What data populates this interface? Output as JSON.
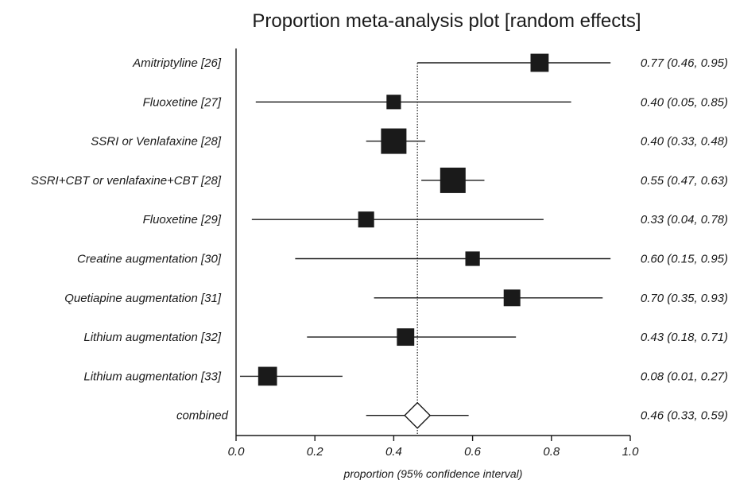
{
  "chart_data": {
    "type": "forest",
    "title": "Proportion meta-analysis plot [random effects]",
    "xlabel": "proportion (95% confidence interval)",
    "xlim": [
      0.0,
      1.0
    ],
    "x_ticks": [
      "0.0",
      "0.2",
      "0.4",
      "0.6",
      "0.8",
      "1.0"
    ],
    "x_tick_values": [
      0.0,
      0.2,
      0.4,
      0.6,
      0.8,
      1.0
    ],
    "studies": [
      {
        "label": "Amitriptyline [26]",
        "estimate": 0.77,
        "lower": 0.46,
        "upper": 0.95,
        "ci_text": "0.77 (0.46, 0.95)",
        "weight": 3
      },
      {
        "label": "Fluoxetine [27]",
        "estimate": 0.4,
        "lower": 0.05,
        "upper": 0.85,
        "ci_text": "0.40 (0.05, 0.85)",
        "weight": 2
      },
      {
        "label": "SSRI or Venlafaxine [28]",
        "estimate": 0.4,
        "lower": 0.33,
        "upper": 0.48,
        "ci_text": "0.40 (0.33, 0.48)",
        "weight": 5
      },
      {
        "label": "SSRI+CBT or venlafaxine+CBT [28]",
        "estimate": 0.55,
        "lower": 0.47,
        "upper": 0.63,
        "ci_text": "0.55 (0.47, 0.63)",
        "weight": 5
      },
      {
        "label": "Fluoxetine [29]",
        "estimate": 0.33,
        "lower": 0.04,
        "upper": 0.78,
        "ci_text": "0.33 (0.04, 0.78)",
        "weight": 2.4
      },
      {
        "label": "Creatine augmentation [30]",
        "estimate": 0.6,
        "lower": 0.15,
        "upper": 0.95,
        "ci_text": "0.60 (0.15, 0.95)",
        "weight": 2
      },
      {
        "label": "Quetiapine augmentation [31]",
        "estimate": 0.7,
        "lower": 0.35,
        "upper": 0.93,
        "ci_text": "0.70 (0.35, 0.93)",
        "weight": 2.6
      },
      {
        "label": "Lithium augmentation [32]",
        "estimate": 0.43,
        "lower": 0.18,
        "upper": 0.71,
        "ci_text": "0.43 (0.18, 0.71)",
        "weight": 2.8
      },
      {
        "label": "Lithium augmentation [33]",
        "estimate": 0.08,
        "lower": 0.01,
        "upper": 0.27,
        "ci_text": "0.08 (0.01, 0.27)",
        "weight": 3.2
      }
    ],
    "combined": {
      "label": "combined",
      "estimate": 0.46,
      "lower": 0.33,
      "upper": 0.59,
      "ci_text": "0.46 (0.33, 0.59)"
    },
    "reference_line": {
      "value": 0.46,
      "style": "dotted"
    },
    "colors": {
      "marker": "#1a1a1a",
      "line": "#1a1a1a",
      "background": "#ffffff"
    }
  }
}
